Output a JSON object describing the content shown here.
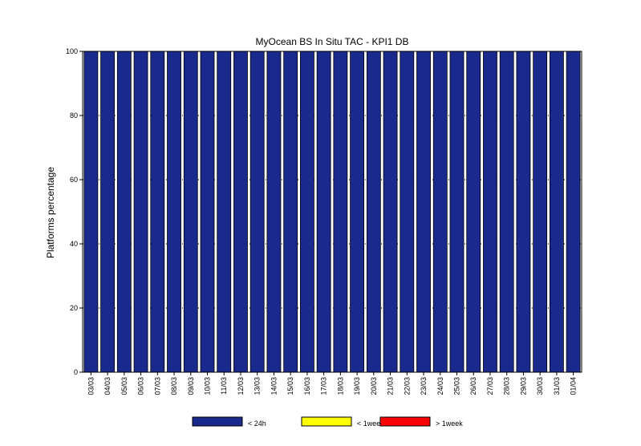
{
  "chart_data": {
    "type": "bar",
    "title": "MyOcean  BS In Situ TAC - KPI1  DB",
    "xlabel": "",
    "ylabel": "Platforms percentage",
    "ylim": [
      0,
      100
    ],
    "yticks": [
      0,
      20,
      40,
      60,
      80,
      100
    ],
    "grid": "horizontal dotted",
    "legend_position": "bottom",
    "categories": [
      "03/03",
      "04/03",
      "05/03",
      "06/03",
      "07/03",
      "08/03",
      "09/03",
      "10/03",
      "11/03",
      "12/03",
      "13/03",
      "14/03",
      "15/03",
      "16/03",
      "17/03",
      "18/03",
      "19/03",
      "20/03",
      "21/03",
      "22/03",
      "23/03",
      "24/03",
      "25/03",
      "26/03",
      "27/03",
      "28/03",
      "29/03",
      "30/03",
      "31/03",
      "01/04"
    ],
    "series": [
      {
        "name": "< 24h",
        "color": "#1a2a8c",
        "values": [
          100,
          100,
          100,
          100,
          100,
          100,
          100,
          100,
          100,
          100,
          100,
          100,
          100,
          100,
          100,
          100,
          100,
          100,
          100,
          100,
          100,
          100,
          100,
          100,
          100,
          100,
          100,
          100,
          100,
          100
        ]
      },
      {
        "name": "< 1week",
        "color": "#ffff00",
        "values": [
          0,
          0,
          0,
          0,
          0,
          0,
          0,
          0,
          0,
          0,
          0,
          0,
          0,
          0,
          0,
          0,
          0,
          0,
          0,
          0,
          0,
          0,
          0,
          0,
          0,
          0,
          0,
          0,
          0,
          0
        ]
      },
      {
        "name": "> 1week",
        "color": "#ff0000",
        "values": [
          0,
          0,
          0,
          0,
          0,
          0,
          0,
          0,
          0,
          0,
          0,
          0,
          0,
          0,
          0,
          0,
          0,
          0,
          0,
          0,
          0,
          0,
          0,
          0,
          0,
          0,
          0,
          0,
          0,
          0
        ]
      }
    ]
  }
}
